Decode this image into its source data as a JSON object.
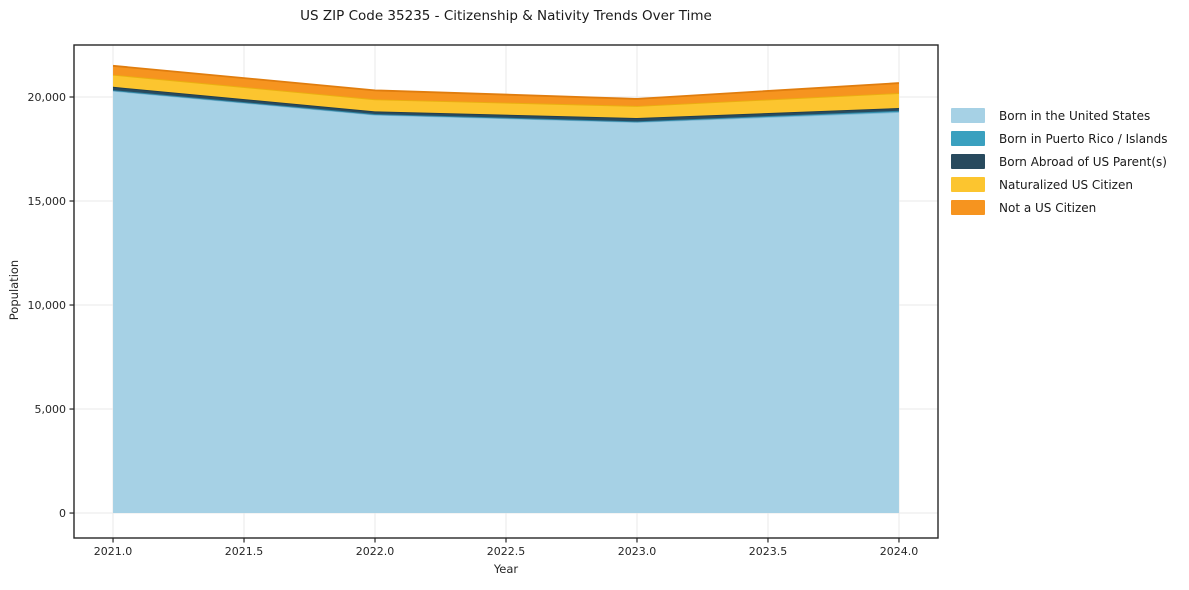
{
  "chart_data": {
    "type": "area",
    "stacked": true,
    "title": "US ZIP Code 35235 - Citizenship & Nativity Trends Over Time",
    "xlabel": "Year",
    "ylabel": "Population",
    "x": [
      2021,
      2022,
      2023,
      2024
    ],
    "series": [
      {
        "name": "Born in the United States",
        "color": "#a6d1e5",
        "edge_color": "#7eb6d2",
        "values": [
          20300,
          19150,
          18800,
          19280
        ]
      },
      {
        "name": "Born in Puerto Rico / Islands",
        "color": "#3aa0bf",
        "edge_color": "#2f83a0",
        "values": [
          30,
          30,
          30,
          60
        ]
      },
      {
        "name": "Born Abroad of US Parent(s)",
        "color": "#284a5e",
        "edge_color": "#203d4e",
        "values": [
          160,
          130,
          160,
          130
        ]
      },
      {
        "name": "Naturalized US Citizen",
        "color": "#fcc52f",
        "edge_color": "#eaaf10",
        "values": [
          580,
          580,
          580,
          720
        ]
      },
      {
        "name": "Not a US Citizen",
        "color": "#f6941f",
        "edge_color": "#e07d0e",
        "values": [
          430,
          430,
          340,
          480
        ]
      }
    ],
    "x_ticks": [
      {
        "v": 2021.0,
        "label": "2021.0"
      },
      {
        "v": 2021.5,
        "label": "2021.5"
      },
      {
        "v": 2022.0,
        "label": "2022.0"
      },
      {
        "v": 2022.5,
        "label": "2022.5"
      },
      {
        "v": 2023.0,
        "label": "2023.0"
      },
      {
        "v": 2023.5,
        "label": "2023.5"
      },
      {
        "v": 2024.0,
        "label": "2024.0"
      }
    ],
    "y_ticks": [
      {
        "v": 0,
        "label": "0"
      },
      {
        "v": 5000,
        "label": "5,000"
      },
      {
        "v": 10000,
        "label": "10,000"
      },
      {
        "v": 15000,
        "label": "15,000"
      },
      {
        "v": 20000,
        "label": "20,000"
      }
    ],
    "xlim": [
      2020.851,
      2024.149
    ],
    "ylim": [
      -1200,
      22500
    ],
    "grid": true,
    "legend_position": "right"
  },
  "style_colors": {
    "grid": "#e9e9e9",
    "spine": "#262626",
    "tick": "#262626",
    "text": "#262626",
    "background": "#ffffff"
  }
}
